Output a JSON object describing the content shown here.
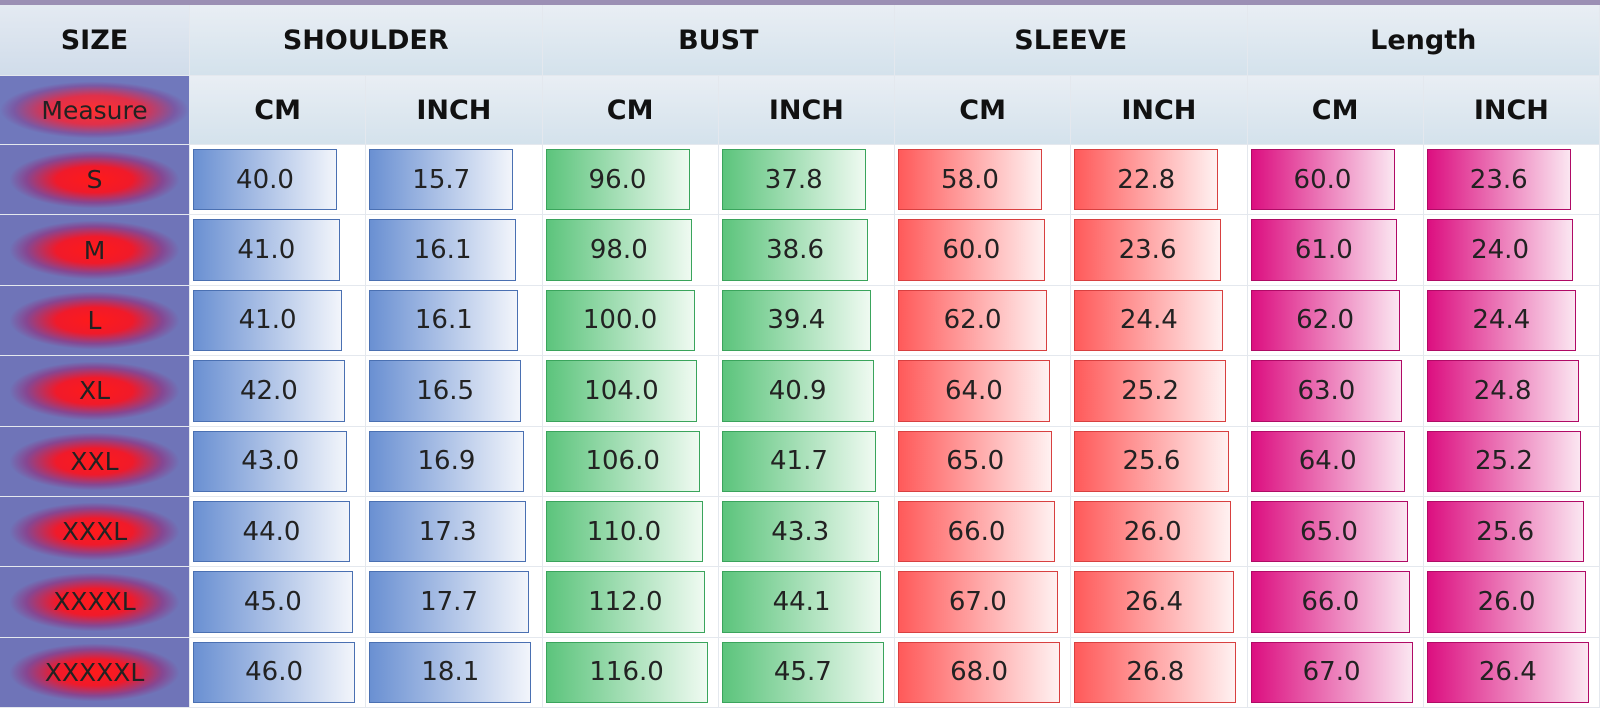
{
  "table": {
    "corner": "SIZE",
    "groups": [
      "SHOULDER",
      "BUST",
      "SLEEVE",
      "Length"
    ],
    "row_header_label": "Measure",
    "subheaders": [
      "CM",
      "INCH",
      "CM",
      "INCH",
      "CM",
      "INCH",
      "CM",
      "INCH"
    ],
    "rows": [
      {
        "size": "S",
        "values": [
          "40.0",
          "15.7",
          "96.0",
          "37.8",
          "58.0",
          "22.8",
          "60.0",
          "23.6"
        ]
      },
      {
        "size": "M",
        "values": [
          "41.0",
          "16.1",
          "98.0",
          "38.6",
          "60.0",
          "23.6",
          "61.0",
          "24.0"
        ]
      },
      {
        "size": "L",
        "values": [
          "41.0",
          "16.1",
          "100.0",
          "39.4",
          "62.0",
          "24.4",
          "62.0",
          "24.4"
        ]
      },
      {
        "size": "XL",
        "values": [
          "42.0",
          "16.5",
          "104.0",
          "40.9",
          "64.0",
          "25.2",
          "63.0",
          "24.8"
        ]
      },
      {
        "size": "XXL",
        "values": [
          "43.0",
          "16.9",
          "106.0",
          "41.7",
          "65.0",
          "25.6",
          "64.0",
          "25.2"
        ]
      },
      {
        "size": "XXXL",
        "values": [
          "44.0",
          "17.3",
          "110.0",
          "43.3",
          "66.0",
          "26.0",
          "65.0",
          "25.6"
        ]
      },
      {
        "size": "XXXXL",
        "values": [
          "45.0",
          "17.7",
          "112.0",
          "44.1",
          "67.0",
          "26.4",
          "66.0",
          "26.0"
        ]
      },
      {
        "size": "XXXXXL",
        "values": [
          "46.0",
          "18.1",
          "116.0",
          "45.7",
          "68.0",
          "26.8",
          "67.0",
          "26.4"
        ]
      }
    ]
  }
}
